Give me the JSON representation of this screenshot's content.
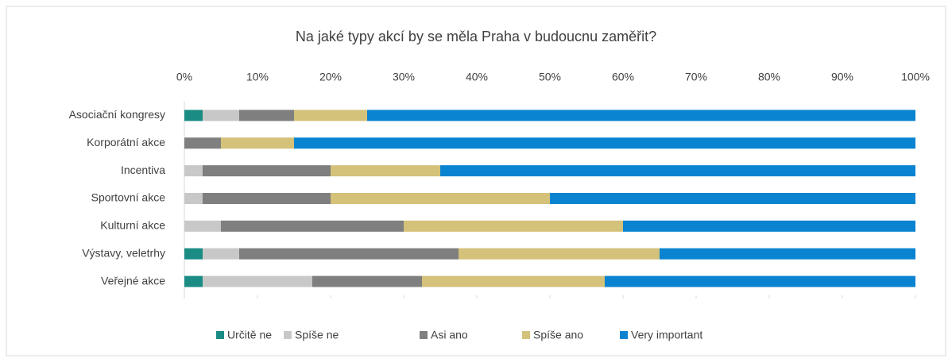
{
  "chart_data": {
    "type": "stacked_bar_horizontal",
    "title": "Na jaké typy akcí by se měla Praha v budoucnu zaměřit?",
    "categories": [
      "Asociační kongresy",
      "Korporátní akce",
      "Incentiva",
      "Sportovní akce",
      "Kulturní akce",
      "Výstavy, veletrhy",
      "Veřejné akce"
    ],
    "series": [
      {
        "name": "Určitě ne",
        "color": "#1a8c84",
        "values": [
          2.5,
          0,
          0,
          0,
          0,
          2.5,
          2.5
        ]
      },
      {
        "name": "Spíše ne",
        "color": "#c8c8c8",
        "values": [
          5,
          0,
          2.5,
          2.5,
          5,
          5,
          15
        ]
      },
      {
        "name": "Asi ano",
        "color": "#7f7f7f",
        "values": [
          7.5,
          5,
          17.5,
          17.5,
          25,
          30,
          15
        ]
      },
      {
        "name": "Spíše ano",
        "color": "#d4c17a",
        "values": [
          10,
          10,
          15,
          30,
          30,
          27.5,
          25
        ]
      },
      {
        "name": "Very important",
        "color": "#0a84d0",
        "values": [
          75,
          85,
          65,
          50,
          40,
          35,
          42.5
        ]
      }
    ],
    "xlim": [
      0,
      100
    ],
    "xticks": [
      {
        "value": 0,
        "label": "0%"
      },
      {
        "value": 10,
        "label": "10%"
      },
      {
        "value": 20,
        "label": "20%"
      },
      {
        "value": 30,
        "label": "30%"
      },
      {
        "value": 40,
        "label": "40%"
      },
      {
        "value": 50,
        "label": "50%"
      },
      {
        "value": 60,
        "label": "60%"
      },
      {
        "value": 70,
        "label": "70%"
      },
      {
        "value": 80,
        "label": "80%"
      },
      {
        "value": 90,
        "label": "90%"
      },
      {
        "value": 100,
        "label": "100%"
      }
    ],
    "legend": "bottom"
  }
}
